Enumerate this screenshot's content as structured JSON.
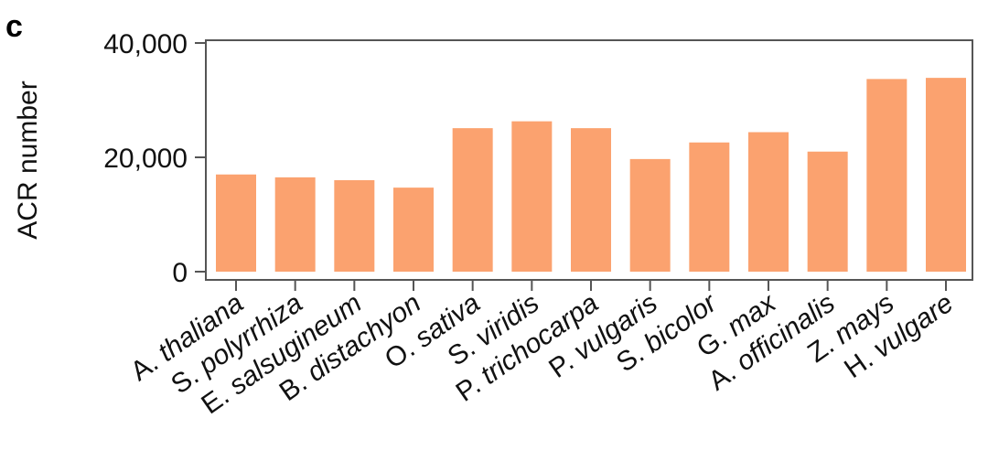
{
  "panel_label": "c",
  "chart_data": {
    "type": "bar",
    "title": "",
    "xlabel": "",
    "ylabel": "ACR number",
    "ylim": [
      0,
      40000
    ],
    "yticks": [
      0,
      20000,
      40000
    ],
    "ytick_labels": [
      "0",
      "20,000",
      "40,000"
    ],
    "categories": [
      "A. thaliana",
      "S. polyrrhiza",
      "E. salsugineum",
      "B. distachyon",
      "O. sativa",
      "S. viridis",
      "P. trichocarpa",
      "P. vulgaris",
      "S. bicolor",
      "G. max",
      "A. officinalis",
      "Z. mays",
      "H. vulgare"
    ],
    "values": [
      17000,
      16500,
      16000,
      14700,
      25100,
      26300,
      25100,
      19700,
      22600,
      24400,
      21000,
      33700,
      33900
    ],
    "grid": false,
    "legend": "none",
    "bar_color": "#FBA26F"
  }
}
